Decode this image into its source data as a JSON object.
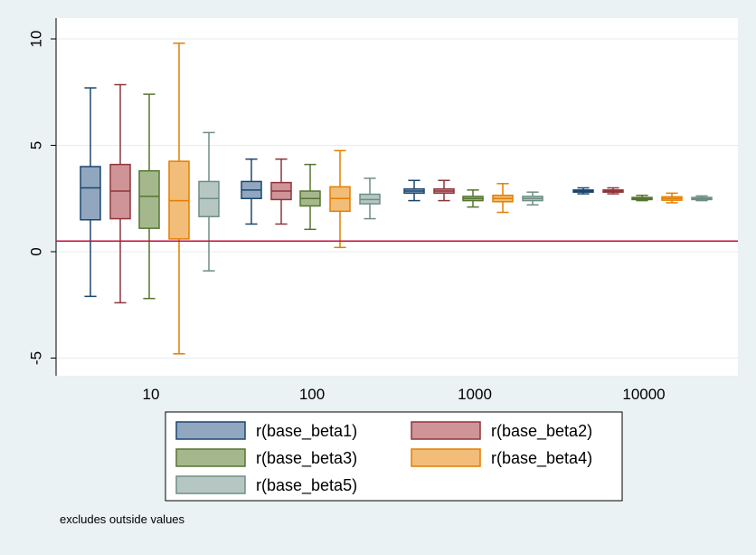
{
  "chart_data": {
    "type": "box",
    "categories": [
      "10",
      "100",
      "1000",
      "10000"
    ],
    "ylim": [
      -6,
      11
    ],
    "yticks": [
      -5,
      0,
      5,
      10
    ],
    "grid": true,
    "reference_line": 0.5,
    "legend_position": "bottom",
    "note": "excludes outside values",
    "series": [
      {
        "name": "r(base_beta1)",
        "fill": "#91a7bf",
        "stroke": "#1a476f",
        "boxes": [
          {
            "lw": -2.1,
            "q1": 1.5,
            "median": 3.0,
            "q3": 4.0,
            "uw": 7.7
          },
          {
            "lw": 1.3,
            "q1": 2.5,
            "median": 2.9,
            "q3": 3.3,
            "uw": 4.35
          },
          {
            "lw": 2.4,
            "q1": 2.75,
            "median": 2.85,
            "q3": 2.95,
            "uw": 3.35
          },
          {
            "lw": 2.72,
            "q1": 2.8,
            "median": 2.85,
            "q3": 2.9,
            "uw": 3.0
          }
        ]
      },
      {
        "name": "r(base_beta2)",
        "fill": "#cf9498",
        "stroke": "#90353b",
        "boxes": [
          {
            "lw": -2.4,
            "q1": 1.55,
            "median": 2.85,
            "q3": 4.1,
            "uw": 7.85
          },
          {
            "lw": 1.3,
            "q1": 2.45,
            "median": 2.85,
            "q3": 3.25,
            "uw": 4.35
          },
          {
            "lw": 2.4,
            "q1": 2.75,
            "median": 2.85,
            "q3": 2.95,
            "uw": 3.35
          },
          {
            "lw": 2.72,
            "q1": 2.8,
            "median": 2.85,
            "q3": 2.9,
            "uw": 3.0
          }
        ]
      },
      {
        "name": "r(base_beta3)",
        "fill": "#a5b88d",
        "stroke": "#55752f",
        "boxes": [
          {
            "lw": -2.2,
            "q1": 1.1,
            "median": 2.6,
            "q3": 3.8,
            "uw": 7.4
          },
          {
            "lw": 1.05,
            "q1": 2.15,
            "median": 2.5,
            "q3": 2.85,
            "uw": 4.1
          },
          {
            "lw": 2.1,
            "q1": 2.4,
            "median": 2.5,
            "q3": 2.6,
            "uw": 2.9
          },
          {
            "lw": 2.4,
            "q1": 2.45,
            "median": 2.5,
            "q3": 2.55,
            "uw": 2.65
          }
        ]
      },
      {
        "name": "r(base_beta4)",
        "fill": "#f2bd78",
        "stroke": "#e37e00",
        "boxes": [
          {
            "lw": -4.8,
            "q1": 0.6,
            "median": 2.4,
            "q3": 4.25,
            "uw": 9.8
          },
          {
            "lw": 0.2,
            "q1": 1.9,
            "median": 2.5,
            "q3": 3.05,
            "uw": 4.75
          },
          {
            "lw": 1.85,
            "q1": 2.35,
            "median": 2.5,
            "q3": 2.65,
            "uw": 3.2
          },
          {
            "lw": 2.3,
            "q1": 2.42,
            "median": 2.5,
            "q3": 2.58,
            "uw": 2.75
          }
        ]
      },
      {
        "name": "r(base_beta5)",
        "fill": "#b6c7c3",
        "stroke": "#6e8e84",
        "boxes": [
          {
            "lw": -0.9,
            "q1": 1.65,
            "median": 2.5,
            "q3": 3.3,
            "uw": 5.6
          },
          {
            "lw": 1.55,
            "q1": 2.25,
            "median": 2.45,
            "q3": 2.7,
            "uw": 3.45
          },
          {
            "lw": 2.2,
            "q1": 2.4,
            "median": 2.5,
            "q3": 2.6,
            "uw": 2.8
          },
          {
            "lw": 2.4,
            "q1": 2.45,
            "median": 2.5,
            "q3": 2.55,
            "uw": 2.62
          }
        ]
      }
    ]
  }
}
